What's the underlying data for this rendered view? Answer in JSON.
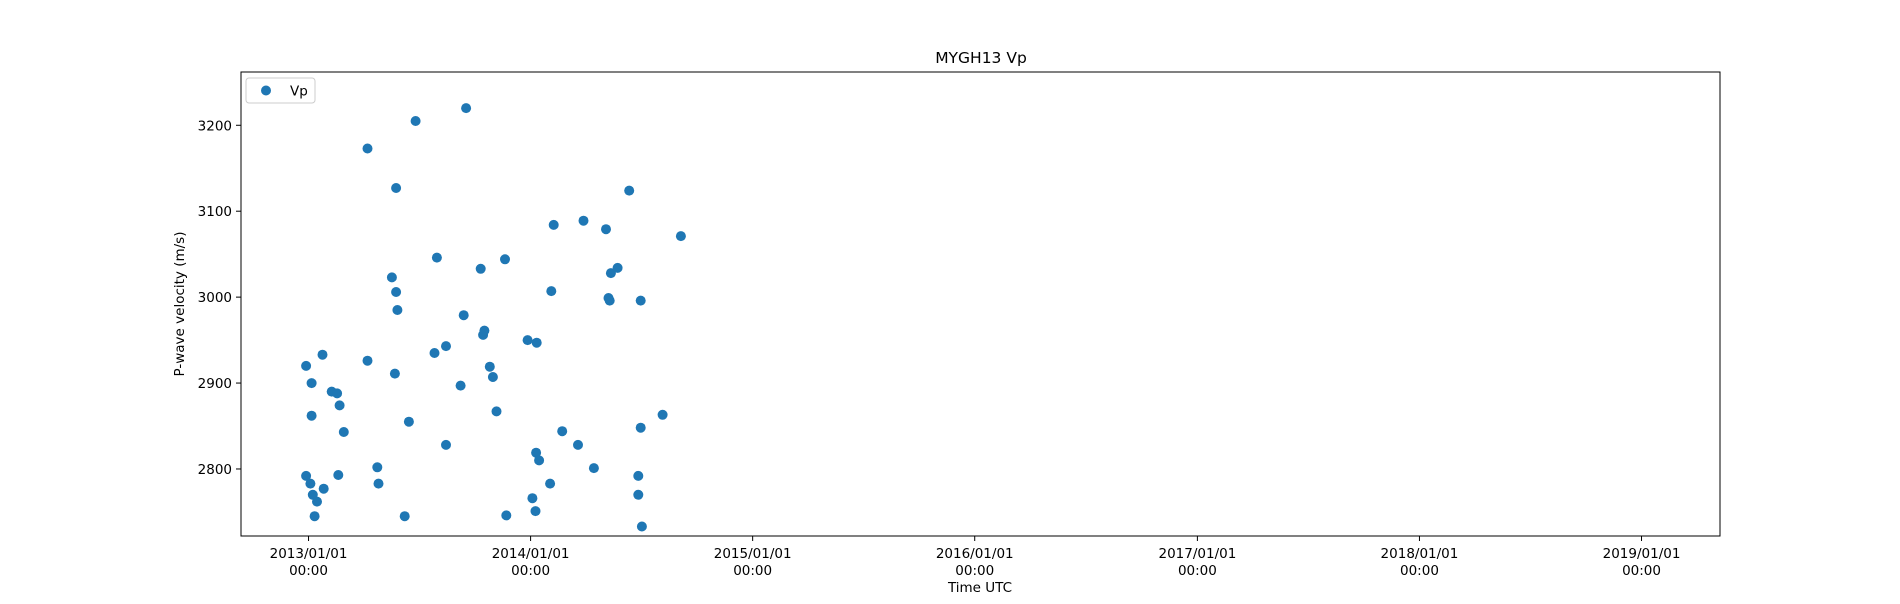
{
  "chart_data": {
    "type": "scatter",
    "title": "MYGH13 Vp",
    "xlabel": "Time UTC",
    "ylabel": "P-wave velocity (m/s)",
    "xlim": [
      "2012-09-12",
      "2019-05-10"
    ],
    "ylim": [
      2722,
      3262
    ],
    "x_ticks": [
      {
        "date": "2013-01-01",
        "line1": "2013/01/01",
        "line2": "00:00"
      },
      {
        "date": "2014-01-01",
        "line1": "2014/01/01",
        "line2": "00:00"
      },
      {
        "date": "2015-01-01",
        "line1": "2015/01/01",
        "line2": "00:00"
      },
      {
        "date": "2016-01-01",
        "line1": "2016/01/01",
        "line2": "00:00"
      },
      {
        "date": "2017-01-01",
        "line1": "2017/01/01",
        "line2": "00:00"
      },
      {
        "date": "2018-01-01",
        "line1": "2018/01/01",
        "line2": "00:00"
      },
      {
        "date": "2019-01-01",
        "line1": "2019/01/01",
        "line2": "00:00"
      }
    ],
    "y_ticks": [
      2800,
      2900,
      3000,
      3100,
      3200
    ],
    "grid": false,
    "legend_position": "top-left",
    "series": [
      {
        "name": "Vp",
        "color": "#1f77b4",
        "marker": "circle",
        "points": [
          [
            "2012-12-28",
            2920
          ],
          [
            "2012-12-28",
            2792
          ],
          [
            "2013-01-04",
            2783
          ],
          [
            "2013-01-06",
            2900
          ],
          [
            "2013-01-06",
            2862
          ],
          [
            "2013-01-08",
            2770
          ],
          [
            "2013-01-11",
            2745
          ],
          [
            "2013-01-15",
            2762
          ],
          [
            "2013-01-24",
            2933
          ],
          [
            "2013-01-26",
            2777
          ],
          [
            "2013-02-08",
            2890
          ],
          [
            "2013-02-17",
            2888
          ],
          [
            "2013-02-19",
            2793
          ],
          [
            "2013-02-21",
            2874
          ],
          [
            "2013-02-28",
            2843
          ],
          [
            "2013-04-08",
            2926
          ],
          [
            "2013-04-08",
            3173
          ],
          [
            "2013-04-24",
            2802
          ],
          [
            "2013-04-26",
            2783
          ],
          [
            "2013-05-18",
            3023
          ],
          [
            "2013-05-23",
            2911
          ],
          [
            "2013-05-25",
            3006
          ],
          [
            "2013-05-25",
            3127
          ],
          [
            "2013-05-27",
            2985
          ],
          [
            "2013-06-08",
            2745
          ],
          [
            "2013-06-15",
            2855
          ],
          [
            "2013-06-26",
            3205
          ],
          [
            "2013-07-27",
            2935
          ],
          [
            "2013-07-31",
            3046
          ],
          [
            "2013-08-15",
            2943
          ],
          [
            "2013-08-15",
            2828
          ],
          [
            "2013-09-08",
            2897
          ],
          [
            "2013-09-13",
            2979
          ],
          [
            "2013-09-17",
            3220
          ],
          [
            "2013-10-11",
            3033
          ],
          [
            "2013-10-15",
            2956
          ],
          [
            "2013-10-17",
            2961
          ],
          [
            "2013-10-26",
            2919
          ],
          [
            "2013-10-31",
            2907
          ],
          [
            "2013-11-06",
            2867
          ],
          [
            "2013-11-20",
            3044
          ],
          [
            "2013-11-22",
            2746
          ],
          [
            "2013-12-27",
            2950
          ],
          [
            "2014-01-04",
            2766
          ],
          [
            "2014-01-09",
            2751
          ],
          [
            "2014-01-10",
            2819
          ],
          [
            "2014-01-11",
            2947
          ],
          [
            "2014-01-15",
            2810
          ],
          [
            "2014-02-02",
            2783
          ],
          [
            "2014-02-04",
            3007
          ],
          [
            "2014-02-08",
            3084
          ],
          [
            "2014-02-22",
            2844
          ],
          [
            "2014-03-20",
            2828
          ],
          [
            "2014-03-29",
            3089
          ],
          [
            "2014-04-15",
            2801
          ],
          [
            "2014-05-05",
            3079
          ],
          [
            "2014-05-09",
            2999
          ],
          [
            "2014-05-11",
            2996
          ],
          [
            "2014-05-13",
            3028
          ],
          [
            "2014-05-24",
            3034
          ],
          [
            "2014-06-12",
            3124
          ],
          [
            "2014-06-27",
            2792
          ],
          [
            "2014-06-27",
            2770
          ],
          [
            "2014-07-01",
            2996
          ],
          [
            "2014-07-01",
            2848
          ],
          [
            "2014-07-03",
            2733
          ],
          [
            "2014-08-06",
            2863
          ],
          [
            "2014-09-05",
            3071
          ]
        ]
      }
    ]
  }
}
